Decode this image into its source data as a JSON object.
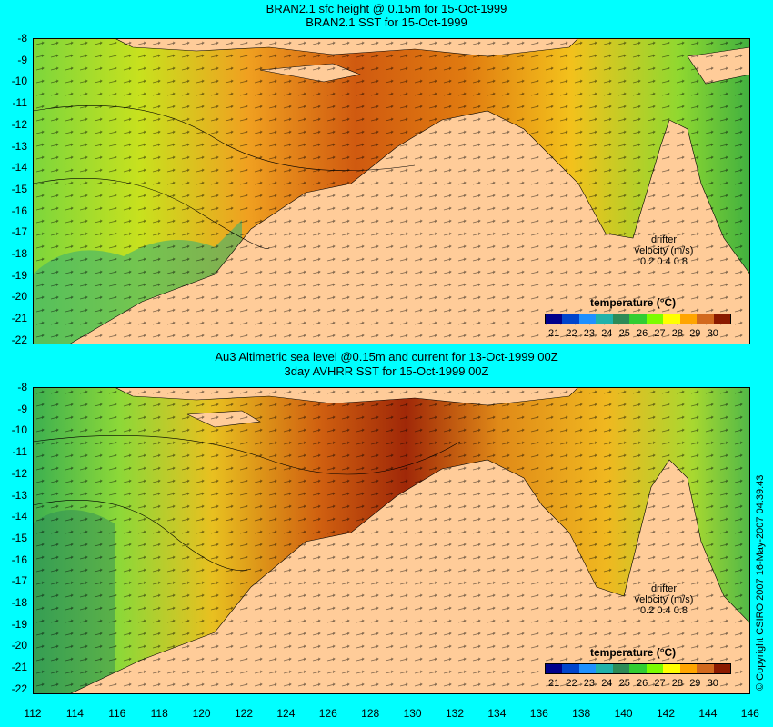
{
  "panel_top": {
    "title_line1": "BRAN2.1 sfc height @ 0.15m for 15-Oct-1999",
    "title_line2": "BRAN2.1 SST for 15-Oct-1999",
    "legend_title": "temperature (°C)",
    "drifter_line1": "drifter",
    "drifter_line2": "velocity (m/s)",
    "drifter_scale": "0.2  0.4  0.8"
  },
  "panel_bottom": {
    "title_line1": "Au3 Altimetric sea level  @0.15m and current for 13-Oct-1999 00Z",
    "title_line2": "3day AVHRR SST for 15-Oct-1999 00Z",
    "legend_title": "temperature (°C)",
    "drifter_line1": "drifter",
    "drifter_line2": "velocity (m/s)",
    "drifter_scale": "0.2  0.4  0.8"
  },
  "colorbar_labels": [
    "21",
    "22",
    "23",
    "24",
    "25",
    "26",
    "27",
    "28",
    "29",
    "30"
  ],
  "colorbar_colors": [
    "#00008b",
    "#0044cc",
    "#1e90ff",
    "#20b2aa",
    "#2e8b57",
    "#32cd32",
    "#7cfc00",
    "#ffff00",
    "#ffa500",
    "#d2691e",
    "#8b1a00"
  ],
  "lat_ticks": [
    "-8",
    "-9",
    "-10",
    "-11",
    "-12",
    "-13",
    "-14",
    "-15",
    "-16",
    "-17",
    "-18",
    "-19",
    "-20",
    "-21",
    "-22"
  ],
  "lon_ticks": [
    "112",
    "114",
    "116",
    "118",
    "120",
    "122",
    "124",
    "126",
    "128",
    "130",
    "132",
    "134",
    "136",
    "138",
    "140",
    "142",
    "144",
    "146"
  ],
  "copyright": "© Copyright CSIRO 2007  16-May-2007 04:39:43",
  "colors": {
    "background": "#00ffff",
    "land": "#ffcc99"
  }
}
